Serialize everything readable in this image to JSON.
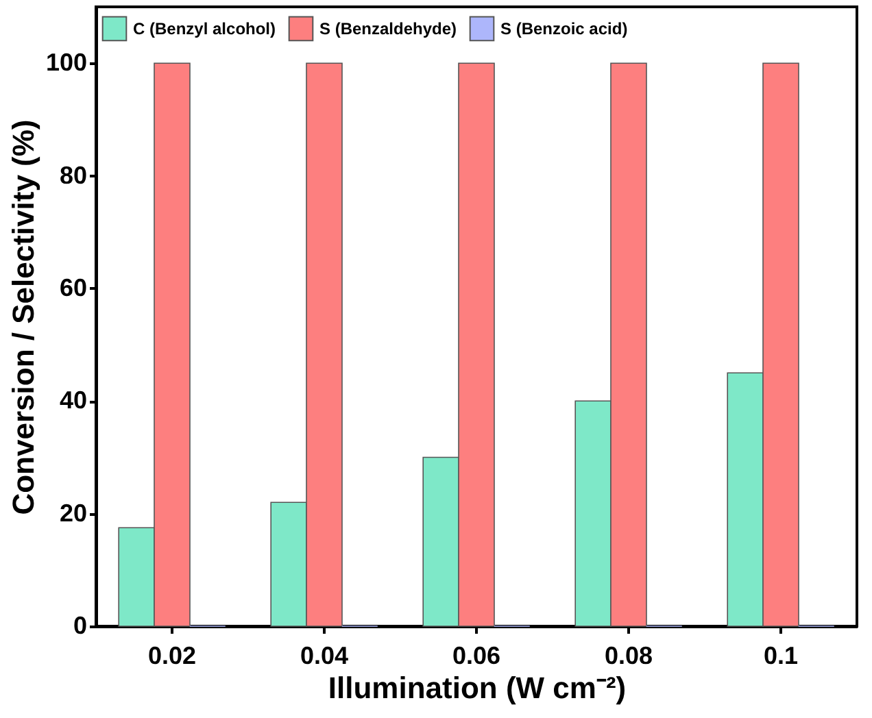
{
  "chart_data": {
    "type": "bar",
    "xlabel": "Illumination (W cm⁻²)",
    "ylabel": "Conversion / Selectivity (%)",
    "categories": [
      "0.02",
      "0.04",
      "0.06",
      "0.08",
      "0.1"
    ],
    "series": [
      {
        "name": "C (Benzyl alcohol)",
        "color": "#7ee8c8",
        "values": [
          17.5,
          22,
          30,
          40,
          45
        ]
      },
      {
        "name": "S (Benzaldehyde)",
        "color": "#fd7f7f",
        "values": [
          100,
          100,
          100,
          100,
          100
        ]
      },
      {
        "name": "S (Benzoic acid)",
        "color": "#adb6fb",
        "values": [
          0,
          0,
          0,
          0,
          0
        ]
      }
    ],
    "ylim": [
      0,
      110
    ],
    "yticks": [
      0,
      20,
      40,
      60,
      80,
      100
    ],
    "grid": false,
    "legend": "top"
  }
}
